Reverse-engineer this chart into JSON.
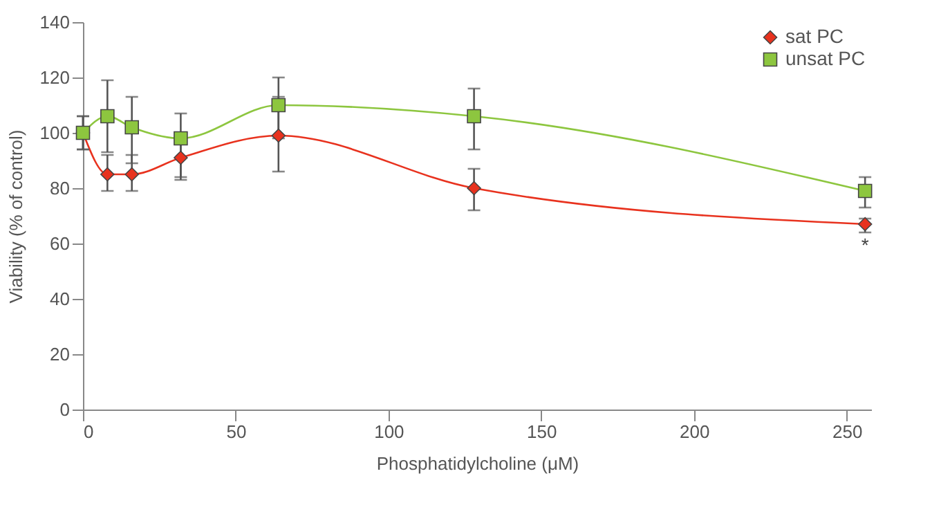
{
  "chart_data": {
    "type": "line",
    "xlabel": "Phosphatidylcholine (μM)",
    "ylabel": "Viability (% of control)",
    "x": [
      0,
      8,
      16,
      32,
      64,
      128,
      256
    ],
    "series": [
      {
        "name": "sat PC",
        "color": "#e8321e",
        "marker": "diamond",
        "values": [
          100,
          85,
          85,
          91,
          99,
          80,
          67
        ],
        "errors": [
          [
            94,
            106
          ],
          [
            79,
            92
          ],
          [
            79,
            92
          ],
          [
            83,
            97
          ],
          [
            86,
            113
          ],
          [
            72,
            87
          ],
          [
            64,
            69
          ]
        ]
      },
      {
        "name": "unsat PC",
        "color": "#8dc63f",
        "marker": "square",
        "values": [
          100,
          106,
          102,
          98,
          110,
          106,
          79
        ],
        "errors": [
          [
            94,
            106
          ],
          [
            93,
            119
          ],
          [
            89,
            113
          ],
          [
            84,
            107
          ],
          [
            98,
            120
          ],
          [
            94,
            116
          ],
          [
            73,
            84
          ]
        ]
      }
    ],
    "xlim": [
      0,
      258
    ],
    "xticks": [
      0,
      50,
      100,
      150,
      200,
      250
    ],
    "ylim": [
      0,
      140
    ],
    "yticks": [
      0,
      20,
      40,
      60,
      80,
      100,
      120,
      140
    ],
    "legend": "top right",
    "grid": false,
    "annotations": [
      "*"
    ]
  }
}
